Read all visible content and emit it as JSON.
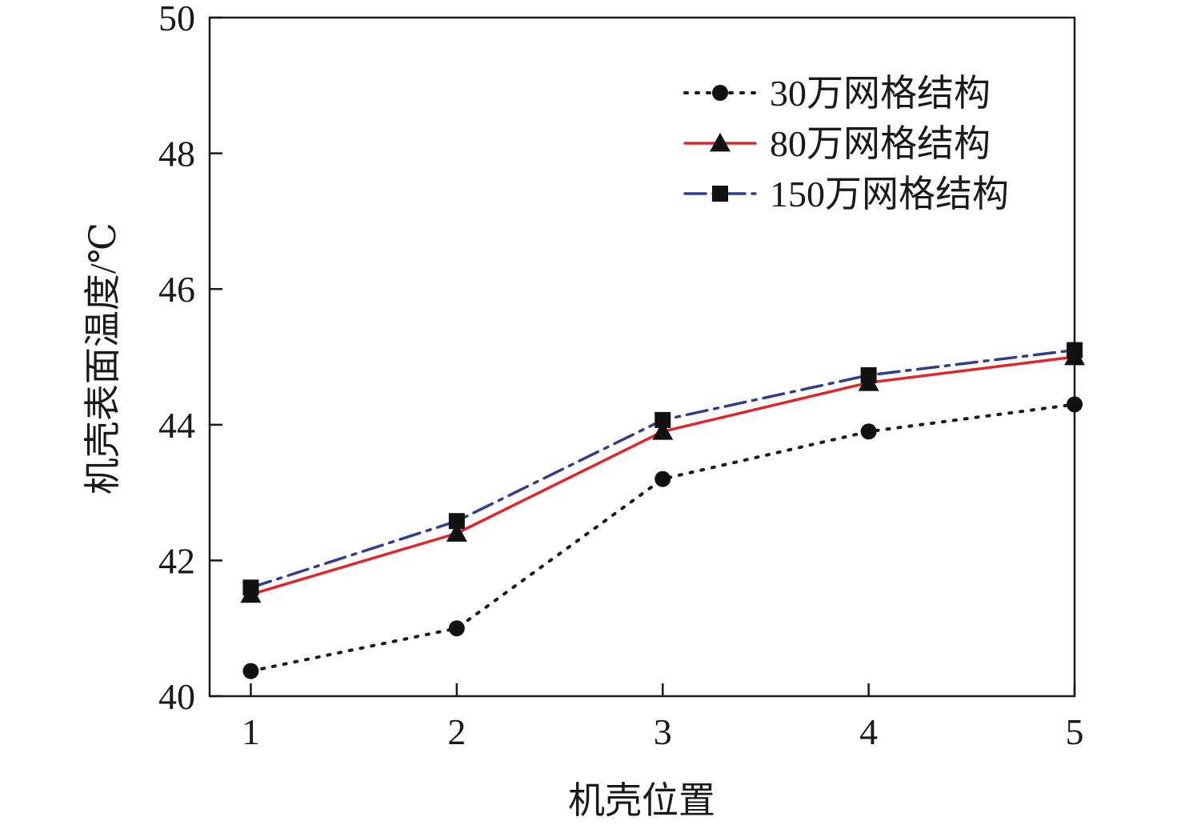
{
  "chart_data": {
    "type": "line",
    "x": [
      1,
      2,
      3,
      4,
      5
    ],
    "xlabel": "机壳位置",
    "ylabel": "机壳表面温度/℃",
    "xlim": [
      0.8,
      5
    ],
    "ylim": [
      40,
      50
    ],
    "xticks": [
      "1",
      "2",
      "3",
      "4",
      "5"
    ],
    "yticks": [
      "40",
      "42",
      "44",
      "46",
      "48",
      "50"
    ],
    "grid": false,
    "legend_position": "top-right",
    "series": [
      {
        "name": "30万网格结构",
        "values": [
          40.37,
          41.0,
          43.2,
          43.9,
          44.3
        ],
        "color": "#1a1a1a",
        "line_style": "dotted",
        "marker": "circle"
      },
      {
        "name": "80万网格结构",
        "values": [
          41.5,
          42.4,
          43.9,
          44.62,
          45.0
        ],
        "color": "#e0262b",
        "line_style": "solid",
        "marker": "triangle"
      },
      {
        "name": "150万网格结构",
        "values": [
          41.6,
          42.58,
          44.07,
          44.73,
          45.1
        ],
        "color": "#2f3f8f",
        "line_style": "dash-dot",
        "marker": "square"
      }
    ]
  }
}
